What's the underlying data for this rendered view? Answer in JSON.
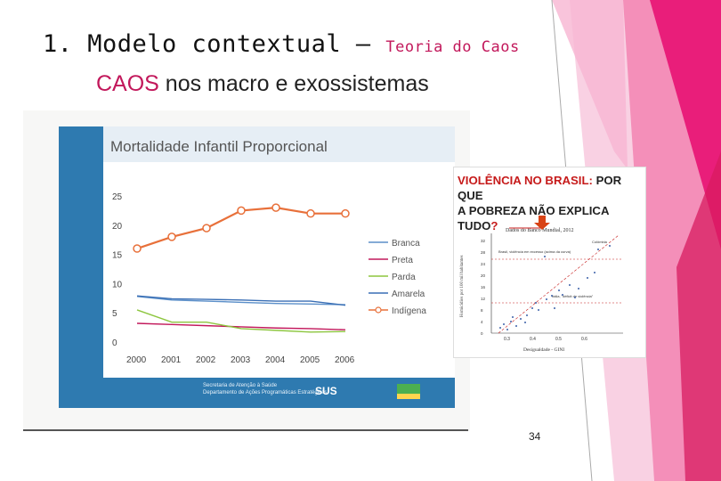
{
  "slide": {
    "title_main": "1. Modelo contextual –",
    "title_sub": "Teoria do Caos",
    "subtitle_caos": "CAOS",
    "subtitle_rest": " nos macro e exossistemas",
    "page_number": "34"
  },
  "chart_data": {
    "type": "line",
    "title": "Mortalidade Infantil Proporcional",
    "categories": [
      "2000",
      "2001",
      "2002",
      "2003",
      "2004",
      "2005",
      "2006"
    ],
    "yticks": [
      "0",
      "5",
      "10",
      "15",
      "20",
      "25"
    ],
    "ylim": [
      0,
      25
    ],
    "legend_position": "right",
    "series": [
      {
        "name": "Branca",
        "color": "#5b8fc9",
        "values": [
          7.8,
          7.2,
          7.0,
          6.8,
          6.6,
          6.5,
          6.4
        ],
        "x": [
          0,
          1,
          2,
          3,
          4,
          5,
          6
        ]
      },
      {
        "name": "Preta",
        "color": "#c2185b",
        "values": [
          3.2,
          3.0,
          2.8,
          2.6,
          2.4,
          2.3,
          2.1
        ],
        "x": [
          0,
          1,
          2,
          3,
          4,
          5,
          6
        ]
      },
      {
        "name": "Parda",
        "color": "#8dc63f",
        "values": [
          5.5,
          3.4,
          3.4,
          2.3,
          2.0,
          1.7,
          1.8
        ],
        "x": [
          0,
          1,
          2,
          3,
          4,
          5,
          6
        ]
      },
      {
        "name": "Amarela",
        "color": "#3a6fb5",
        "values": [
          7.9,
          7.4,
          7.3,
          7.2,
          7.0,
          7.0,
          6.3
        ],
        "x": [
          0,
          1,
          2,
          3,
          4,
          5,
          6
        ]
      },
      {
        "name": "Indígena",
        "color": "#e8703a",
        "values": [
          16.0,
          18.0,
          19.5,
          22.5,
          23.0,
          22.0,
          22.0
        ],
        "x": [
          0,
          1,
          2,
          3,
          4,
          5,
          6
        ],
        "markers": true
      }
    ]
  },
  "chart_footer": {
    "line1": "Secretaria de Atenção à Saúde",
    "line2": "Departamento de Ações Programáticas Estratégicas",
    "sus_label": "SUS"
  },
  "inset": {
    "headline_red": "VIOLÊNCIA NO BRASIL:",
    "headline_black_1": " POR QUE",
    "headline_black_2": "A POBREZA NÃO EXPLICA TUDO",
    "headline_qmark": "?",
    "plot": {
      "title": "Dados do Banco Mundial, 2012",
      "ylabel": "Homicídios por 100 mil habitantes",
      "xlabel": "Desigualdade - GINI",
      "xticks": [
        "0.3",
        "0.4",
        "0.5",
        "0.6"
      ],
      "yticks": [
        "0",
        "4",
        "8",
        "12",
        "16",
        "20",
        "24",
        "28",
        "32"
      ],
      "annotation_brazil": "Brasil, violência em excesso (acima da curva)",
      "annotation_colombia": "Colômbia",
      "annotation_other": "Itália, \"déficit de violência\""
    },
    "accent_color": "#c61a1a"
  },
  "colors": {
    "chart_bg": "#2e7ab0",
    "plot_bg": "#ffffff",
    "deco_pink": "#e91e7a",
    "deco_light": "#f7b5d2"
  }
}
